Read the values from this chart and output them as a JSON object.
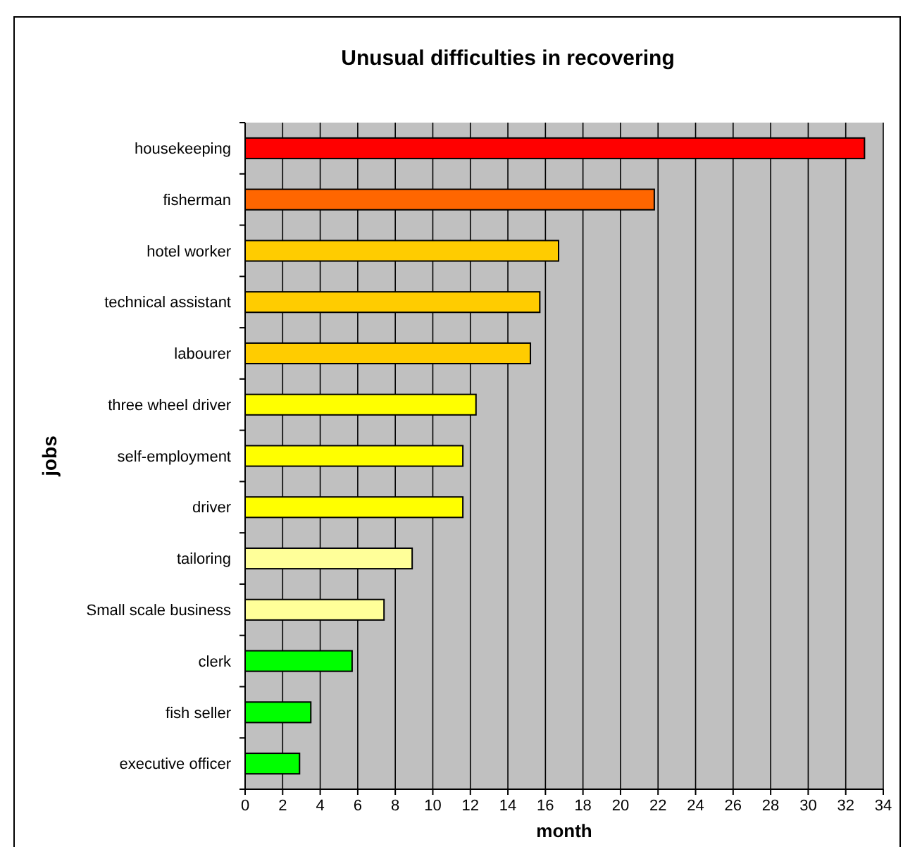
{
  "chart_data": {
    "type": "bar",
    "orientation": "horizontal",
    "title": "Unusual difficulties in recovering",
    "xlabel": "month",
    "ylabel": "jobs",
    "categories": [
      "housekeeping",
      "fisherman",
      "hotel worker",
      "technical assistant",
      "labourer",
      "three wheel driver",
      "self-employment",
      "driver",
      "tailoring",
      "Small scale business",
      "clerk",
      "fish seller",
      "executive officer"
    ],
    "values": [
      33,
      21.8,
      16.7,
      15.7,
      15.2,
      12.3,
      11.6,
      11.6,
      8.9,
      7.4,
      5.7,
      3.5,
      2.9
    ],
    "colors": [
      "#ff0000",
      "#ff6600",
      "#ffcc00",
      "#ffcc00",
      "#ffcc00",
      "#ffff00",
      "#ffff00",
      "#ffff00",
      "#ffff99",
      "#ffff99",
      "#00ff00",
      "#00ff00",
      "#00ff00"
    ],
    "xlim": [
      0,
      34
    ],
    "xticks": [
      0,
      2,
      4,
      6,
      8,
      10,
      12,
      14,
      16,
      18,
      20,
      22,
      24,
      26,
      28,
      30,
      32,
      34
    ],
    "grid": "x"
  }
}
